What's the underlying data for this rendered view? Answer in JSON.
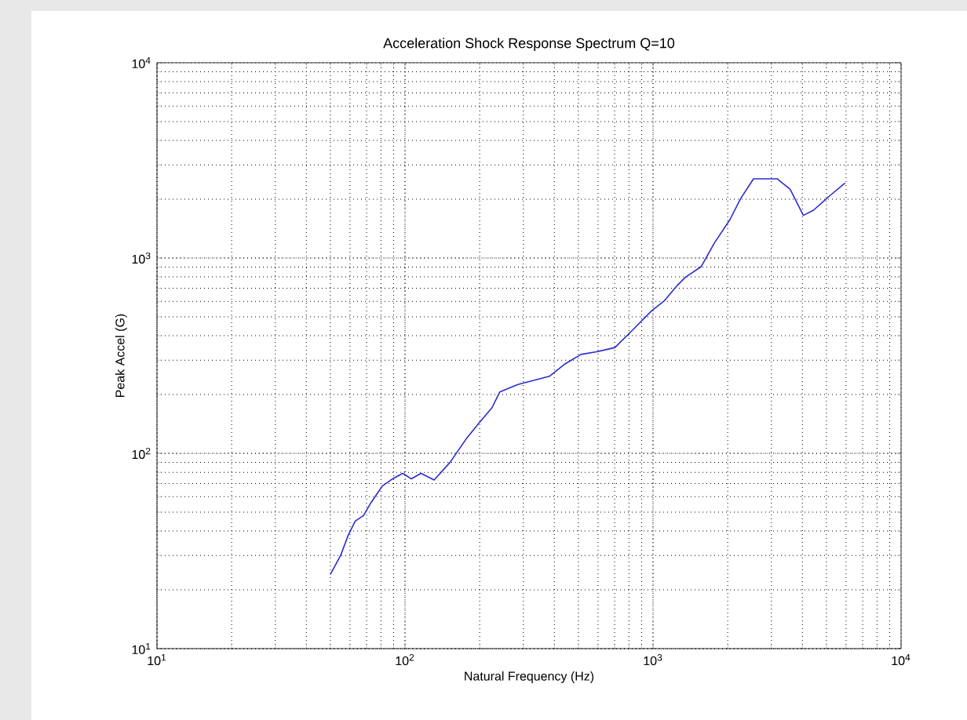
{
  "chart_data": {
    "type": "line",
    "title": "Acceleration Shock Response Spectrum Q=10",
    "xlabel": "Natural Frequency (Hz)",
    "ylabel": "Peak Accel (G)",
    "log": "xy",
    "grid": true,
    "marker": "none",
    "line_style": "solid",
    "xlim": [
      10,
      10000
    ],
    "ylim": [
      10,
      10000
    ],
    "xticks": [
      {
        "value": 10,
        "label": "10$^{1}$"
      },
      {
        "value": 100,
        "label": "10$^{2}$"
      },
      {
        "value": 1000,
        "label": "10$^{3}$"
      },
      {
        "value": 10000,
        "label": "10$^{4}$"
      }
    ],
    "yticks": [
      {
        "value": 10,
        "label": "10$^{1}$"
      },
      {
        "value": 100,
        "label": "10$^{2}$"
      },
      {
        "value": 1000,
        "label": "10$^{3}$"
      },
      {
        "value": 10000,
        "label": "10$^{4}$"
      }
    ],
    "series": [
      {
        "color": "#2b2bd0",
        "x": [
          50,
          55,
          59,
          63,
          68,
          73,
          81,
          89,
          98,
          106,
          116,
          131,
          152,
          176,
          198,
          224,
          241,
          285,
          382,
          442,
          512,
          592,
          702,
          832,
          986,
          1112,
          1257,
          1352,
          1563,
          1765,
          2042,
          2253,
          2541,
          3162,
          3572,
          4036,
          4436,
          5140,
          5943
        ],
        "values": [
          24,
          30,
          38,
          45,
          48,
          56,
          68,
          74,
          79,
          74,
          79,
          73,
          90,
          118,
          142,
          171,
          206,
          225,
          248,
          287,
          321,
          331,
          348,
          431,
          536,
          605,
          728,
          798,
          903,
          1191,
          1573,
          2013,
          2545,
          2545,
          2249,
          1653,
          1758,
          2076,
          2421
        ]
      }
    ]
  }
}
